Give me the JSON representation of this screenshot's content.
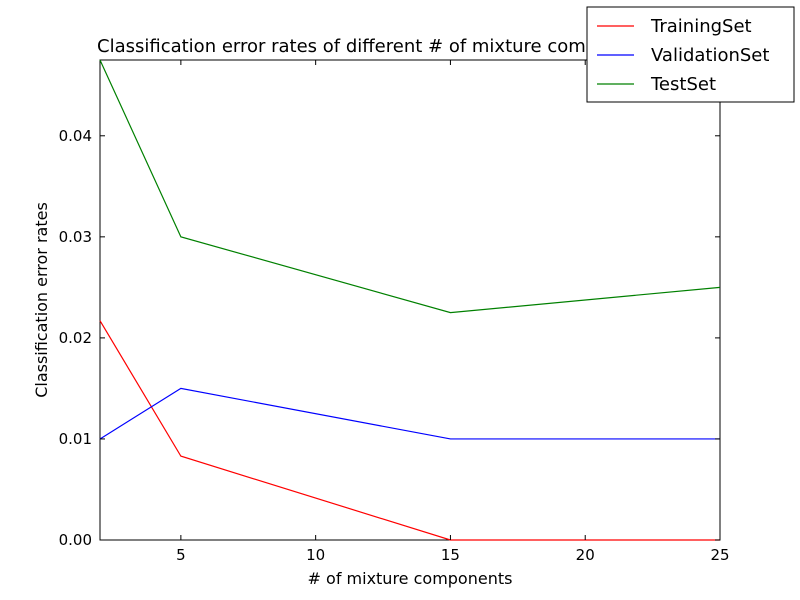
{
  "chart_data": {
    "type": "line",
    "title": "Classification error rates of different # of mixture components",
    "xlabel": "# of mixture components",
    "ylabel": "Classification error rates",
    "x": [
      2,
      5,
      15,
      25
    ],
    "xlim": [
      2,
      25
    ],
    "ylim": [
      0,
      0.0475
    ],
    "xticks": [
      5,
      10,
      15,
      20,
      25
    ],
    "xtick_labels": [
      "5",
      "10",
      "15",
      "20",
      "25"
    ],
    "yticks": [
      0,
      0.01,
      0.02,
      0.03,
      0.04
    ],
    "ytick_labels": [
      "0.00",
      "0.01",
      "0.02",
      "0.03",
      "0.04"
    ],
    "grid": false,
    "legend_position": "top-right",
    "series": [
      {
        "name": "TrainingSet",
        "color": "#ff0000",
        "values": [
          0.0217,
          0.0083,
          0.0,
          0.0
        ]
      },
      {
        "name": "ValidationSet",
        "color": "#0000ff",
        "values": [
          0.01,
          0.015,
          0.01,
          0.01
        ]
      },
      {
        "name": "TestSet",
        "color": "#008000",
        "values": [
          0.0475,
          0.03,
          0.0225,
          0.025
        ]
      }
    ]
  }
}
